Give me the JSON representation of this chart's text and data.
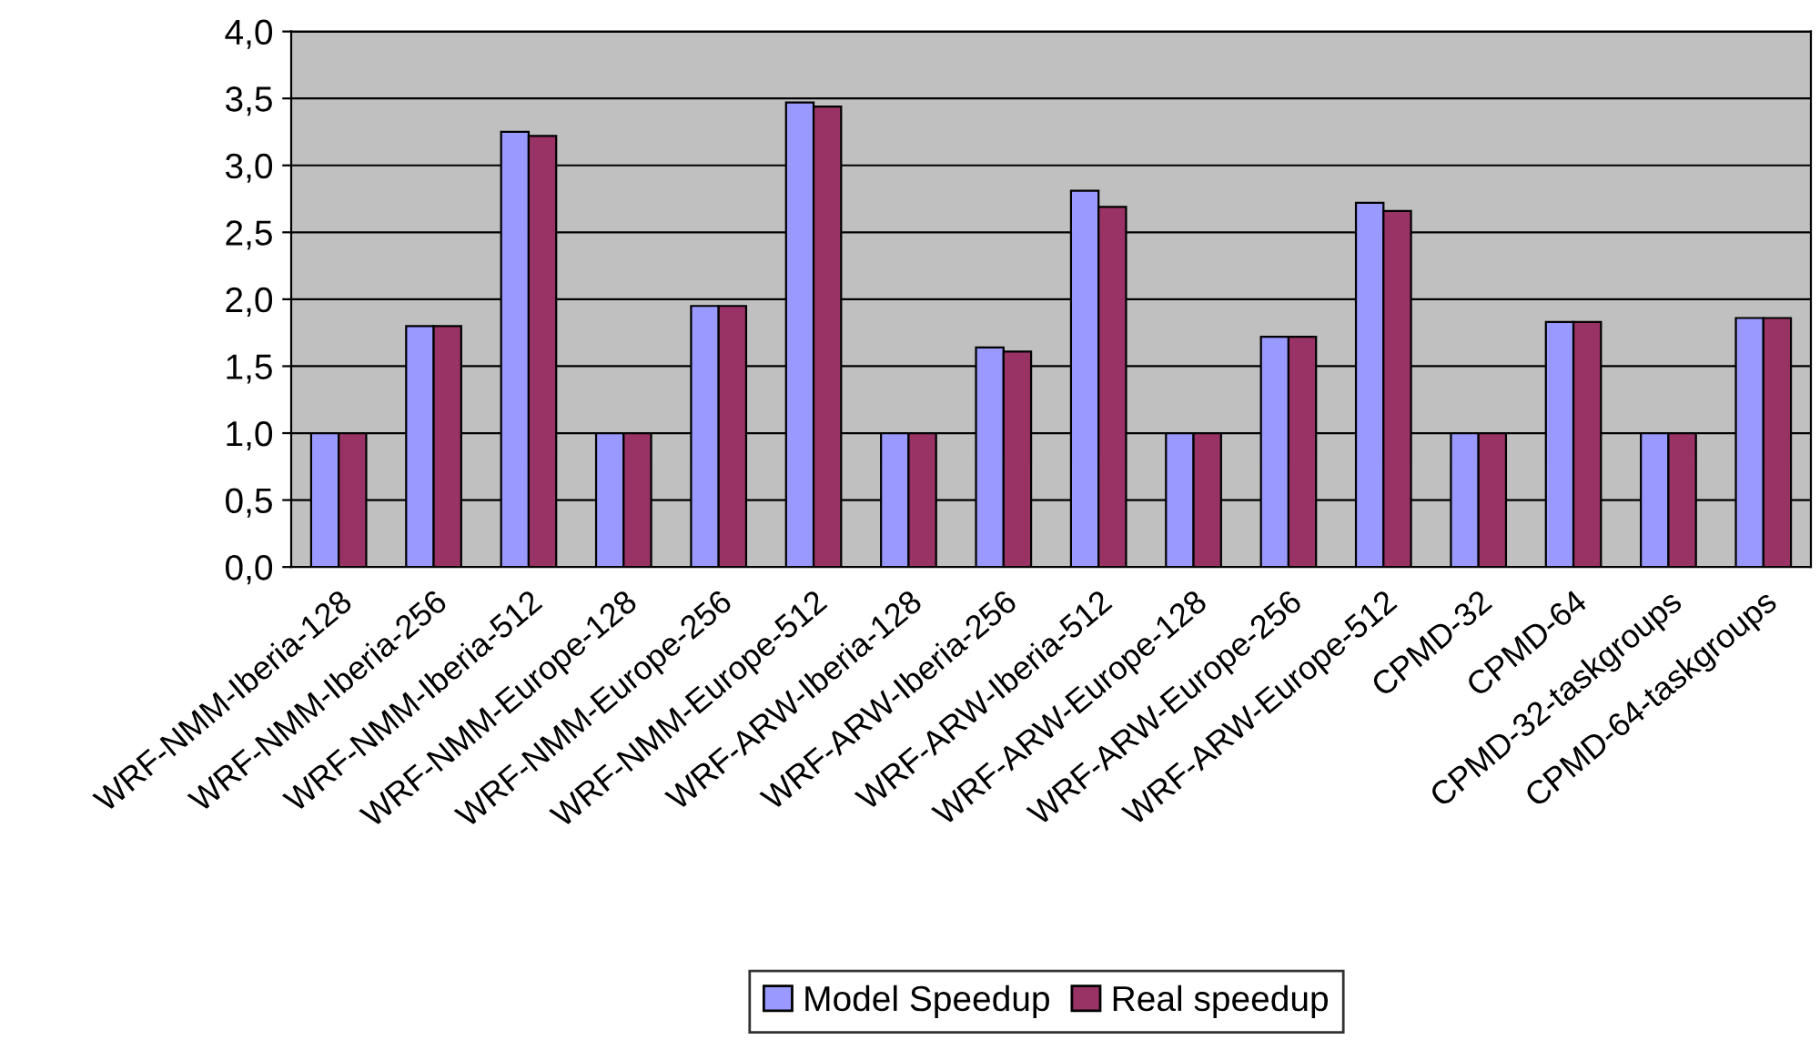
{
  "chart_data": {
    "type": "bar",
    "categories": [
      "WRF-NMM-Iberia-128",
      "WRF-NMM-Iberia-256",
      "WRF-NMM-Iberia-512",
      "WRF-NMM-Europe-128",
      "WRF-NMM-Europe-256",
      "WRF-NMM-Europe-512",
      "WRF-ARW-Iberia-128",
      "WRF-ARW-Iberia-256",
      "WRF-ARW-Iberia-512",
      "WRF-ARW-Europe-128",
      "WRF-ARW-Europe-256",
      "WRF-ARW-Europe-512",
      "CPMD-32",
      "CPMD-64",
      "CPMD-32-taskgroups",
      "CPMD-64-taskgroups"
    ],
    "series": [
      {
        "name": "Model Speedup",
        "color": "#9999ff",
        "values": [
          1.0,
          1.8,
          3.25,
          1.0,
          1.95,
          3.47,
          1.0,
          1.64,
          2.81,
          1.0,
          1.72,
          2.72,
          1.0,
          1.83,
          1.0,
          1.86
        ]
      },
      {
        "name": "Real speedup",
        "color": "#993366",
        "values": [
          1.0,
          1.8,
          3.22,
          1.0,
          1.95,
          3.44,
          1.0,
          1.61,
          2.69,
          1.0,
          1.72,
          2.66,
          1.0,
          1.83,
          1.0,
          1.86
        ]
      }
    ],
    "ylim": [
      0,
      4
    ],
    "yticks": [
      {
        "value": 0,
        "label": "0,0"
      },
      {
        "value": 0.5,
        "label": "0,5"
      },
      {
        "value": 1,
        "label": "1,0"
      },
      {
        "value": 1.5,
        "label": "1,5"
      },
      {
        "value": 2,
        "label": "2,0"
      },
      {
        "value": 2.5,
        "label": "2,5"
      },
      {
        "value": 3,
        "label": "3,0"
      },
      {
        "value": 3.5,
        "label": "3,5"
      },
      {
        "value": 4,
        "label": "4,0"
      }
    ],
    "grid": "y",
    "legend": "bottom"
  }
}
